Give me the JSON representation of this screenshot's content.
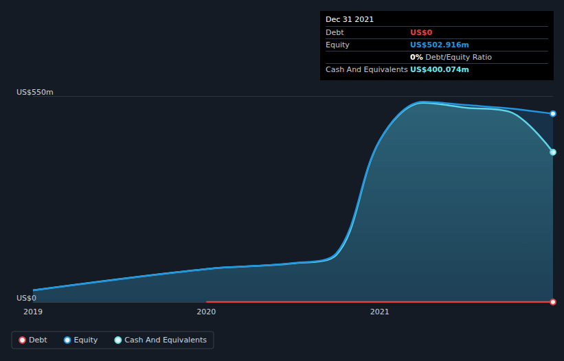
{
  "chart_data": {
    "type": "area",
    "x": [
      2019,
      2020,
      2020.5,
      2020.75,
      2021,
      2021.25,
      2021.5,
      2021.75,
      2022
    ],
    "series": [
      {
        "name": "Debt",
        "color": "#e64141",
        "type": "line",
        "values": [
          null,
          0,
          0,
          0,
          0,
          0,
          0,
          0,
          0
        ]
      },
      {
        "name": "Equity",
        "color": "#2394df",
        "values": [
          31,
          88,
          104,
          130,
          432,
          535,
          526,
          517,
          502.916
        ]
      },
      {
        "name": "Cash And Equivalents",
        "color": "#6ce5e8",
        "values": [
          31,
          88,
          103,
          126,
          431,
          532,
          519,
          508,
          400.074
        ]
      }
    ],
    "xlim": [
      2019,
      2022
    ],
    "xticks": [
      2019,
      2020,
      2021
    ],
    "ylim": [
      0,
      550
    ],
    "yticks": [
      {
        "value": 0,
        "label": "US$0"
      },
      {
        "value": 550,
        "label": "US$550m"
      }
    ],
    "grid": true,
    "legend": "bottom left"
  },
  "info_box": {
    "title": "Dec 31 2021",
    "rows": [
      {
        "label": "Debt",
        "value": "US$0",
        "color": "#e64141"
      },
      {
        "label": "Equity",
        "value": "US$502.916m",
        "color": "#2394df"
      },
      {
        "value": "0%",
        "text": "Debt/Equity Ratio",
        "color": "#ffffff"
      },
      {
        "label": "Cash And Equivalents",
        "value": "US$400.074m",
        "color": "#6ce5e8"
      }
    ]
  }
}
